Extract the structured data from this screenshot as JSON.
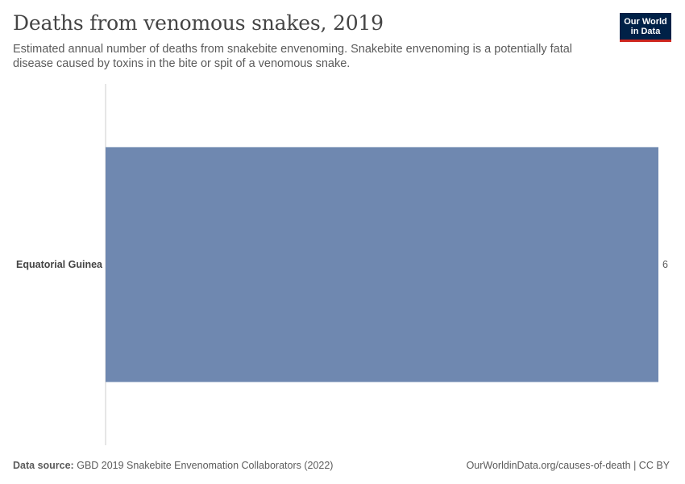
{
  "header": {
    "title": "Deaths from venomous snakes, 2019",
    "subtitle": "Estimated annual number of deaths from snakebite envenoming. Snakebite envenoming is a potentially fatal disease caused by toxins in the bite or spit of a venomous snake.",
    "logo_line1": "Our World",
    "logo_line2": "in Data"
  },
  "footer": {
    "source_label": "Data source:",
    "source_text": "GBD 2019 Snakebite Envenomation Collaborators (2022)",
    "url_license": "OurWorldinData.org/causes-of-death | CC BY"
  },
  "colors": {
    "bar": "#6f88b0",
    "axis": "#cccccc",
    "logo_bg": "#002147",
    "logo_accent": "#ce261e"
  },
  "chart_data": {
    "type": "bar",
    "orientation": "horizontal",
    "categories": [
      "Equatorial Guinea"
    ],
    "values": [
      6
    ],
    "value_labels": [
      "6"
    ],
    "xlim": [
      0,
      6
    ],
    "grid": false
  }
}
